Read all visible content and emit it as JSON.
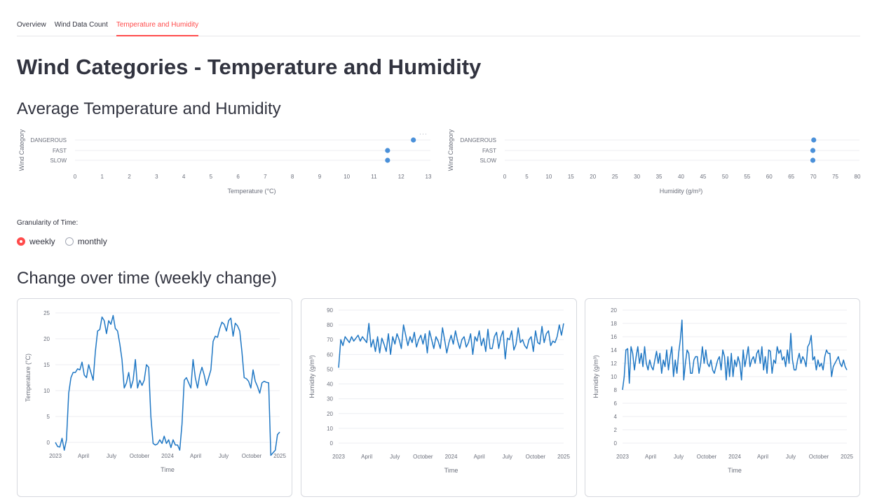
{
  "tabs": [
    {
      "label": "Overview",
      "active": false
    },
    {
      "label": "Wind Data Count",
      "active": false
    },
    {
      "label": "Temperature and Humidity",
      "active": true
    }
  ],
  "page_title": "Wind Categories - Temperature and Humidity",
  "avg_section_title": "Average Temperature and Humidity",
  "granularity": {
    "label": "Granularity of Time:",
    "options": [
      "weekly",
      "monthly"
    ],
    "selected": "weekly"
  },
  "change_section_title": "Change over time (weekly change)",
  "menu_glyph": "···",
  "colors": {
    "accent": "#ff4b4b",
    "series": "#1f77c4",
    "dot": "#4a90d9"
  },
  "chart_data": [
    {
      "type": "scatter",
      "title": "",
      "xlabel": "Temperature (°C)",
      "ylabel": "Wind Category",
      "categories": [
        "DANGEROUS",
        "FAST",
        "SLOW"
      ],
      "values": [
        12.45,
        11.5,
        11.5
      ],
      "xlim": [
        0,
        13
      ],
      "xticks": [
        "0",
        "1",
        "2",
        "3",
        "4",
        "5",
        "6",
        "7",
        "8",
        "9",
        "10",
        "11",
        "12",
        "13"
      ],
      "grid": true
    },
    {
      "type": "scatter",
      "title": "",
      "xlabel": "Humidity (g/m³)",
      "ylabel": "Wind Category",
      "categories": [
        "DANGEROUS",
        "FAST",
        "SLOW"
      ],
      "values": [
        70.1,
        69.9,
        69.9
      ],
      "xlim": [
        0,
        80
      ],
      "xticks": [
        "0",
        "5",
        "10",
        "15",
        "20",
        "25",
        "30",
        "35",
        "40",
        "45",
        "50",
        "55",
        "60",
        "65",
        "70",
        "75",
        "80"
      ],
      "grid": true
    },
    {
      "type": "line",
      "title": "",
      "xlabel": "Time",
      "ylabel": "Temperature (°C)",
      "ylim": [
        0,
        25
      ],
      "yticks": [
        "0",
        "5",
        "10",
        "15",
        "20",
        "25"
      ],
      "xticks": [
        "2023",
        "April",
        "July",
        "October",
        "2024",
        "April",
        "July",
        "October",
        "2025"
      ],
      "grid": true,
      "series": [
        {
          "values": [
            0,
            -0.8,
            -0.9,
            0.8,
            -1.5,
            0.5,
            9.5,
            12.5,
            13.5,
            13.5,
            14.2,
            14.0,
            15.5,
            13.0,
            12.5,
            15.0,
            13.5,
            12.0,
            17.5,
            21.5,
            21.8,
            24.2,
            23.5,
            21.0,
            23.5,
            22.8,
            24.5,
            22.0,
            21.5,
            19.0,
            16.0,
            10.5,
            11.5,
            13.5,
            10.5,
            12.0,
            16.0,
            10.5,
            12.0,
            11.0,
            12.0,
            15.0,
            14.5,
            5.0,
            -0.2,
            -0.5,
            -0.3,
            0.5,
            -0.2,
            1.2,
            -0.2,
            0.5,
            -1.0,
            0.5,
            -0.5,
            -0.5,
            -1.5,
            3.5,
            12.0,
            12.5,
            11.5,
            10.5,
            16.0,
            12.5,
            10.5,
            13.0,
            14.5,
            13.0,
            11.0,
            12.5,
            14.0,
            19.5,
            20.5,
            20.3,
            22.0,
            23.2,
            22.8,
            21.5,
            23.5,
            24.0,
            20.5,
            23.0,
            22.5,
            21.5,
            17.5,
            12.5,
            12.3,
            11.8,
            10.5,
            14.0,
            11.8,
            10.8,
            9.5,
            11.5,
            11.8,
            11.6,
            11.5,
            -2.5,
            -2.0,
            -1.5,
            1.5,
            2.0
          ]
        }
      ]
    },
    {
      "type": "line",
      "title": "",
      "xlabel": "Time",
      "ylabel": "Humidity (g/m³)",
      "ylim": [
        0,
        90
      ],
      "yticks": [
        "0",
        "10",
        "20",
        "30",
        "40",
        "50",
        "60",
        "70",
        "80",
        "90"
      ],
      "xticks": [
        "2023",
        "April",
        "July",
        "October",
        "2024",
        "April",
        "July",
        "October",
        "2025"
      ],
      "grid": true,
      "series": [
        {
          "values": [
            51,
            70,
            66,
            72,
            70,
            68,
            72,
            69,
            71,
            73,
            69,
            72,
            70,
            68,
            81,
            65,
            70,
            62,
            72,
            61,
            71,
            67,
            62,
            74,
            60,
            72,
            67,
            74,
            70,
            64,
            80,
            73,
            66,
            72,
            68,
            75,
            65,
            70,
            73,
            67,
            74,
            61,
            76,
            70,
            64,
            72,
            69,
            64,
            78,
            70,
            61,
            68,
            73,
            67,
            76,
            69,
            64,
            70,
            72,
            65,
            68,
            74,
            60,
            72,
            69,
            76,
            66,
            71,
            62,
            77,
            64,
            64,
            72,
            75,
            64,
            72,
            76,
            57,
            71,
            70,
            76,
            63,
            67,
            78,
            68,
            70,
            66,
            64,
            70,
            72,
            62,
            76,
            68,
            67,
            79,
            68,
            74,
            76,
            66,
            69,
            68,
            72,
            80,
            73,
            81
          ]
        }
      ]
    },
    {
      "type": "line",
      "title": "",
      "xlabel": "Time",
      "ylabel": "Humidity (g/m³)",
      "ylim": [
        0,
        20
      ],
      "yticks": [
        "0",
        "2",
        "4",
        "6",
        "8",
        "10",
        "12",
        "14",
        "16",
        "18",
        "20"
      ],
      "xticks": [
        "2023",
        "April",
        "July",
        "October",
        "2024",
        "April",
        "July",
        "October",
        "2025"
      ],
      "grid": true,
      "series": [
        {
          "values": [
            8.0,
            10.0,
            14.0,
            14.2,
            9.0,
            14.5,
            13.5,
            11.0,
            13.0,
            14.5,
            12.0,
            13.5,
            11.5,
            14.5,
            12.0,
            11.0,
            12.5,
            11.5,
            11.0,
            12.5,
            13.8,
            12.0,
            13.5,
            10.5,
            12.5,
            11.5,
            14.0,
            11.0,
            13.0,
            14.5,
            10.0,
            12.5,
            10.5,
            13.5,
            15.5,
            18.5,
            9.5,
            12.0,
            14.0,
            13.5,
            10.5,
            10.5,
            12.5,
            13.0,
            13.0,
            10.5,
            12.0,
            14.5,
            12.0,
            14.0,
            12.0,
            11.5,
            12.5,
            11.0,
            10.5,
            11.5,
            12.5,
            13.0,
            11.0,
            14.0,
            13.0,
            9.5,
            13.0,
            10.0,
            13.5,
            10.0,
            12.5,
            11.5,
            13.0,
            12.0,
            9.5,
            14.0,
            11.5,
            13.0,
            14.5,
            11.5,
            12.5,
            13.0,
            12.0,
            13.5,
            14.0,
            12.0,
            14.5,
            11.0,
            13.0,
            10.5,
            14.0,
            13.8,
            10.5,
            12.5,
            12.0,
            14.5,
            13.5,
            14.0,
            12.5,
            13.0,
            11.5,
            14.0,
            12.0,
            16.5,
            12.5,
            11.0,
            11.0,
            12.5,
            13.5,
            12.0,
            13.0,
            12.5,
            11.5,
            14.5,
            15.0,
            16.2,
            12.5,
            13.0,
            11.0,
            12.5,
            11.5,
            12.0,
            11.0,
            13.0,
            14.0,
            13.5,
            13.5,
            10.0,
            11.5,
            12.0,
            12.5,
            13.0,
            12.0,
            11.5,
            12.5,
            11.5,
            11.0
          ]
        }
      ]
    }
  ]
}
